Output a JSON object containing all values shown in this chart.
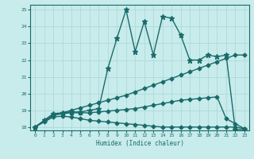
{
  "title": "",
  "xlabel": "Humidex (Indice chaleur)",
  "bg_color": "#c8ebeb",
  "line_color": "#1a6b6b",
  "grid_color": "#a8d8d8",
  "xlim": [
    -0.5,
    23.5
  ],
  "ylim": [
    17.8,
    25.3
  ],
  "xticks": [
    0,
    1,
    2,
    3,
    4,
    5,
    6,
    7,
    8,
    9,
    10,
    11,
    12,
    13,
    14,
    15,
    16,
    17,
    18,
    19,
    20,
    21,
    22,
    23
  ],
  "yticks": [
    18,
    19,
    20,
    21,
    22,
    23,
    24,
    25
  ],
  "series": [
    {
      "x": [
        0,
        1,
        2,
        3,
        4,
        5,
        6,
        7,
        8,
        9,
        10,
        11,
        12,
        13,
        14,
        15,
        16,
        17,
        18,
        19,
        20,
        21,
        22,
        23
      ],
      "y": [
        18.0,
        18.35,
        18.7,
        18.85,
        19.0,
        19.15,
        19.3,
        19.45,
        19.6,
        19.75,
        19.9,
        20.1,
        20.3,
        20.5,
        20.7,
        20.9,
        21.1,
        21.3,
        21.5,
        21.7,
        21.9,
        22.1,
        22.3,
        22.3
      ],
      "marker": "D",
      "markersize": 2.5,
      "linewidth": 1.0
    },
    {
      "x": [
        0,
        1,
        2,
        3,
        4,
        5,
        6,
        7,
        8,
        9,
        10,
        11,
        12,
        13,
        14,
        15,
        16,
        17,
        18,
        19,
        20,
        21,
        22,
        23
      ],
      "y": [
        18.0,
        18.4,
        18.8,
        18.85,
        18.9,
        18.9,
        19.0,
        19.1,
        21.5,
        23.3,
        25.0,
        22.5,
        24.3,
        22.3,
        24.6,
        24.5,
        23.5,
        22.0,
        22.0,
        22.3,
        22.2,
        22.3,
        17.85,
        17.85
      ],
      "marker": "*",
      "markersize": 5,
      "linewidth": 1.0
    },
    {
      "x": [
        0,
        1,
        2,
        3,
        4,
        5,
        6,
        7,
        8,
        9,
        10,
        11,
        12,
        13,
        14,
        15,
        16,
        17,
        18,
        19,
        20,
        21,
        22,
        23
      ],
      "y": [
        18.0,
        18.35,
        18.7,
        18.8,
        18.85,
        18.85,
        18.85,
        18.9,
        18.95,
        19.0,
        19.05,
        19.1,
        19.2,
        19.3,
        19.4,
        19.5,
        19.6,
        19.65,
        19.7,
        19.75,
        19.8,
        18.5,
        18.2,
        17.9
      ],
      "marker": "D",
      "markersize": 2.5,
      "linewidth": 1.0
    },
    {
      "x": [
        0,
        1,
        2,
        3,
        4,
        5,
        6,
        7,
        8,
        9,
        10,
        11,
        12,
        13,
        14,
        15,
        16,
        17,
        18,
        19,
        20,
        21,
        22,
        23
      ],
      "y": [
        18.0,
        18.3,
        18.6,
        18.65,
        18.6,
        18.5,
        18.4,
        18.35,
        18.3,
        18.25,
        18.2,
        18.15,
        18.1,
        18.05,
        18.0,
        18.0,
        18.0,
        18.0,
        18.0,
        18.0,
        18.0,
        18.0,
        18.0,
        17.9
      ],
      "marker": "D",
      "markersize": 2.5,
      "linewidth": 1.0
    }
  ]
}
